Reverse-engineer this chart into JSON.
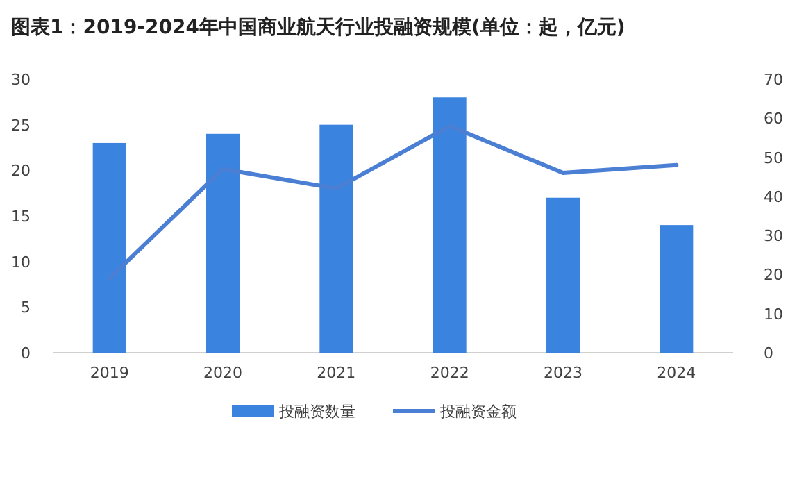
{
  "chart_data": {
    "type": "bar",
    "title": "图表1：2019-2024年中国商业航天行业投融资规模(单位：起，亿元)",
    "categories": [
      "2019",
      "2020",
      "2021",
      "2022",
      "2023",
      "2024"
    ],
    "series": [
      {
        "name": "投融资数量",
        "color": "#3a84e0",
        "values": [
          23,
          24,
          25,
          28,
          17,
          14
        ]
      },
      {
        "name": "投融资金额",
        "type": "line",
        "axis": "y2",
        "color": "#4a7fd4",
        "values": [
          19,
          47,
          42,
          58,
          46,
          48
        ]
      }
    ],
    "ylim": [
      0,
      30
    ],
    "yticks": [
      0,
      5,
      10,
      15,
      20,
      25,
      30
    ],
    "y2lim": [
      0,
      70
    ],
    "y2ticks": [
      0,
      10,
      20,
      30,
      40,
      50,
      60,
      70
    ],
    "legend": "bottom",
    "grid": false,
    "marker": "none"
  }
}
